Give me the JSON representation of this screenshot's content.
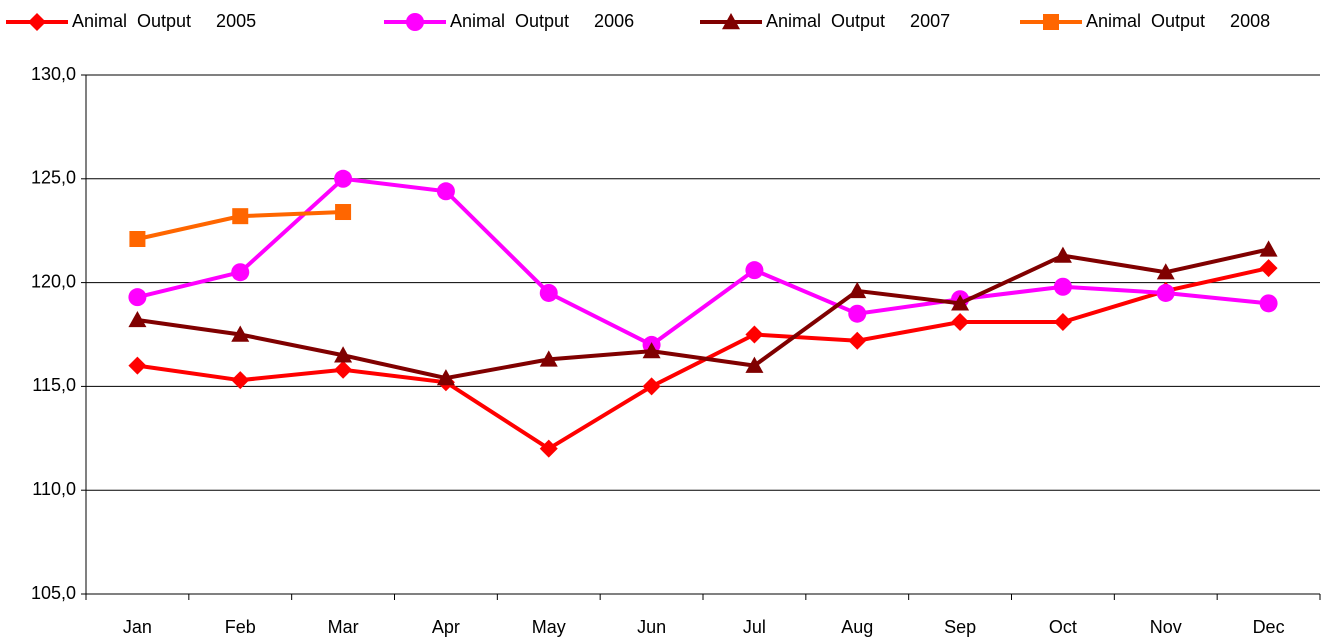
{
  "chart_data": {
    "type": "line",
    "categories": [
      "Jan",
      "Feb",
      "Mar",
      "Apr",
      "May",
      "Jun",
      "Jul",
      "Aug",
      "Sep",
      "Oct",
      "Nov",
      "Dec"
    ],
    "series": [
      {
        "name": "Animal  Output     2005",
        "color": "#ff0000",
        "marker": "diamond",
        "values": [
          116.0,
          115.3,
          115.8,
          115.2,
          112.0,
          115.0,
          117.5,
          117.2,
          118.1,
          118.1,
          119.6,
          120.7
        ]
      },
      {
        "name": "Animal  Output     2006",
        "color": "#ff00ff",
        "marker": "circle",
        "values": [
          119.3,
          120.5,
          125.0,
          124.4,
          119.5,
          117.0,
          120.6,
          118.5,
          119.2,
          119.8,
          119.5,
          119.0
        ]
      },
      {
        "name": "Animal  Output     2007",
        "color": "#800000",
        "marker": "triangle",
        "values": [
          118.2,
          117.5,
          116.5,
          115.4,
          116.3,
          116.7,
          116.0,
          119.6,
          119.0,
          121.3,
          120.5,
          121.6
        ]
      },
      {
        "name": "Animal  Output     2008",
        "color": "#ff6600",
        "marker": "square",
        "values": [
          122.1,
          123.2,
          123.4,
          null,
          null,
          null,
          null,
          null,
          null,
          null,
          null,
          null
        ]
      }
    ],
    "ylim": [
      105,
      130
    ],
    "yticks": [
      {
        "value": 105,
        "label": "105,0"
      },
      {
        "value": 110,
        "label": "110,0"
      },
      {
        "value": 115,
        "label": "115,0"
      },
      {
        "value": 120,
        "label": "120,0"
      },
      {
        "value": 125,
        "label": "125,0"
      },
      {
        "value": 130,
        "label": "130,0"
      }
    ],
    "grid": true,
    "legend": "top"
  }
}
